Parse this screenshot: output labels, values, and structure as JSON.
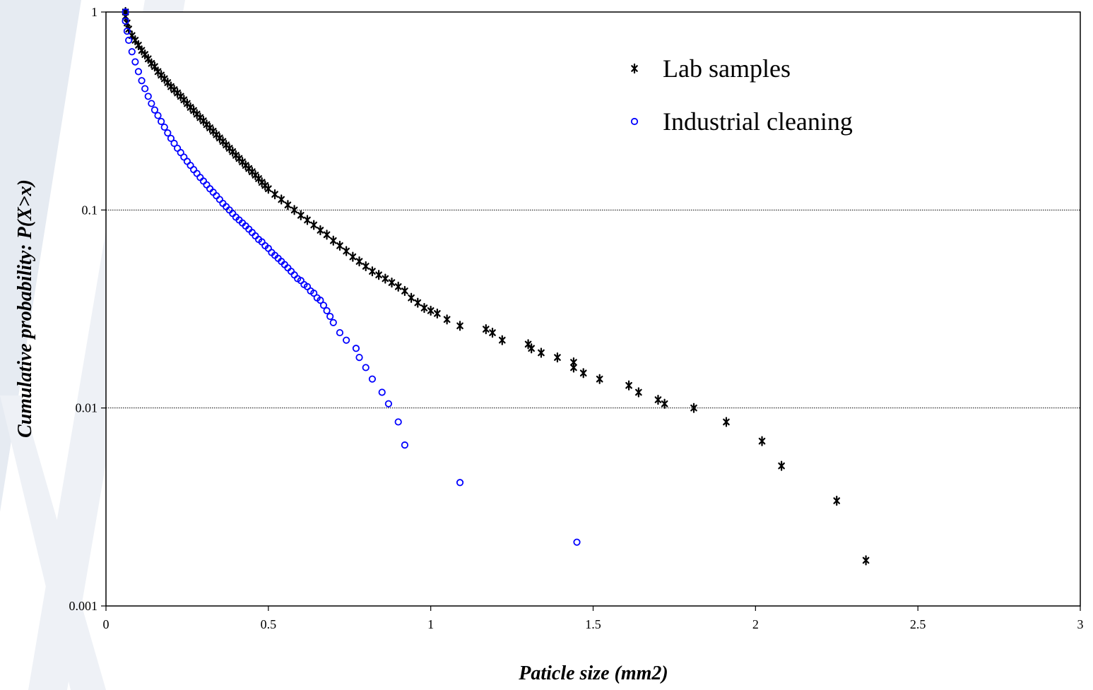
{
  "chart_data": {
    "type": "scatter",
    "title": "",
    "xlabel": "Paticle size (mm2)",
    "ylabel": "Cumulative probability: P(X>x)",
    "xlim": [
      0,
      3
    ],
    "ylim": [
      0.001,
      1
    ],
    "yscale": "log",
    "x_ticks": [
      "0",
      "0.5",
      "1",
      "1.5",
      "2",
      "2.5",
      "3"
    ],
    "y_ticks": [
      "0.001",
      "0.01",
      "0.1",
      "1"
    ],
    "grid": "horizontal major gridlines",
    "legend_position": "top-right",
    "series": [
      {
        "name": "Lab samples",
        "marker": "asterisk",
        "color": "#000000",
        "points": [
          [
            0.06,
            1.0
          ],
          [
            0.06,
            0.95
          ],
          [
            0.065,
            0.88
          ],
          [
            0.07,
            0.82
          ],
          [
            0.08,
            0.76
          ],
          [
            0.09,
            0.72
          ],
          [
            0.1,
            0.68
          ],
          [
            0.11,
            0.64
          ],
          [
            0.12,
            0.61
          ],
          [
            0.13,
            0.58
          ],
          [
            0.14,
            0.55
          ],
          [
            0.15,
            0.53
          ],
          [
            0.16,
            0.5
          ],
          [
            0.17,
            0.48
          ],
          [
            0.18,
            0.46
          ],
          [
            0.19,
            0.44
          ],
          [
            0.2,
            0.42
          ],
          [
            0.21,
            0.405
          ],
          [
            0.22,
            0.39
          ],
          [
            0.23,
            0.375
          ],
          [
            0.24,
            0.36
          ],
          [
            0.25,
            0.345
          ],
          [
            0.26,
            0.33
          ],
          [
            0.27,
            0.318
          ],
          [
            0.28,
            0.305
          ],
          [
            0.29,
            0.293
          ],
          [
            0.3,
            0.282
          ],
          [
            0.31,
            0.27
          ],
          [
            0.32,
            0.26
          ],
          [
            0.33,
            0.25
          ],
          [
            0.34,
            0.24
          ],
          [
            0.35,
            0.231
          ],
          [
            0.36,
            0.222
          ],
          [
            0.37,
            0.213
          ],
          [
            0.38,
            0.205
          ],
          [
            0.39,
            0.197
          ],
          [
            0.4,
            0.189
          ],
          [
            0.41,
            0.182
          ],
          [
            0.42,
            0.175
          ],
          [
            0.43,
            0.168
          ],
          [
            0.44,
            0.162
          ],
          [
            0.45,
            0.156
          ],
          [
            0.46,
            0.15
          ],
          [
            0.47,
            0.144
          ],
          [
            0.48,
            0.138
          ],
          [
            0.49,
            0.133
          ],
          [
            0.5,
            0.128
          ],
          [
            0.52,
            0.12
          ],
          [
            0.54,
            0.113
          ],
          [
            0.56,
            0.106
          ],
          [
            0.58,
            0.1
          ],
          [
            0.6,
            0.094
          ],
          [
            0.62,
            0.089
          ],
          [
            0.64,
            0.084
          ],
          [
            0.66,
            0.079
          ],
          [
            0.68,
            0.075
          ],
          [
            0.7,
            0.07
          ],
          [
            0.72,
            0.066
          ],
          [
            0.74,
            0.062
          ],
          [
            0.76,
            0.058
          ],
          [
            0.78,
            0.055
          ],
          [
            0.8,
            0.052
          ],
          [
            0.82,
            0.049
          ],
          [
            0.84,
            0.047
          ],
          [
            0.86,
            0.045
          ],
          [
            0.88,
            0.043
          ],
          [
            0.9,
            0.041
          ],
          [
            0.92,
            0.039
          ],
          [
            0.94,
            0.036
          ],
          [
            0.96,
            0.034
          ],
          [
            0.98,
            0.032
          ],
          [
            1.0,
            0.031
          ],
          [
            1.02,
            0.03
          ],
          [
            1.05,
            0.028
          ],
          [
            1.09,
            0.026
          ],
          [
            1.17,
            0.025
          ],
          [
            1.19,
            0.024
          ],
          [
            1.22,
            0.022
          ],
          [
            1.3,
            0.021
          ],
          [
            1.31,
            0.02
          ],
          [
            1.34,
            0.019
          ],
          [
            1.39,
            0.018
          ],
          [
            1.44,
            0.017
          ],
          [
            1.44,
            0.016
          ],
          [
            1.47,
            0.015
          ],
          [
            1.52,
            0.014
          ],
          [
            1.61,
            0.013
          ],
          [
            1.64,
            0.012
          ],
          [
            1.7,
            0.011
          ],
          [
            1.72,
            0.0105
          ],
          [
            1.81,
            0.01
          ],
          [
            1.91,
            0.0085
          ],
          [
            2.02,
            0.0068
          ],
          [
            2.08,
            0.0051
          ],
          [
            2.25,
            0.0034
          ],
          [
            2.34,
            0.0017
          ]
        ]
      },
      {
        "name": "Industrial cleaning",
        "marker": "circle",
        "color": "#0000ff",
        "points": [
          [
            0.06,
            1.0
          ],
          [
            0.06,
            0.9
          ],
          [
            0.065,
            0.8
          ],
          [
            0.07,
            0.72
          ],
          [
            0.08,
            0.63
          ],
          [
            0.09,
            0.56
          ],
          [
            0.1,
            0.5
          ],
          [
            0.11,
            0.45
          ],
          [
            0.12,
            0.41
          ],
          [
            0.13,
            0.375
          ],
          [
            0.14,
            0.345
          ],
          [
            0.15,
            0.32
          ],
          [
            0.16,
            0.3
          ],
          [
            0.17,
            0.28
          ],
          [
            0.18,
            0.262
          ],
          [
            0.19,
            0.245
          ],
          [
            0.2,
            0.23
          ],
          [
            0.21,
            0.217
          ],
          [
            0.22,
            0.205
          ],
          [
            0.23,
            0.195
          ],
          [
            0.24,
            0.185
          ],
          [
            0.25,
            0.176
          ],
          [
            0.26,
            0.168
          ],
          [
            0.27,
            0.16
          ],
          [
            0.28,
            0.153
          ],
          [
            0.29,
            0.146
          ],
          [
            0.3,
            0.14
          ],
          [
            0.31,
            0.134
          ],
          [
            0.32,
            0.128
          ],
          [
            0.33,
            0.123
          ],
          [
            0.34,
            0.118
          ],
          [
            0.35,
            0.113
          ],
          [
            0.36,
            0.108
          ],
          [
            0.37,
            0.104
          ],
          [
            0.38,
            0.1
          ],
          [
            0.39,
            0.096
          ],
          [
            0.4,
            0.092
          ],
          [
            0.41,
            0.089
          ],
          [
            0.42,
            0.086
          ],
          [
            0.43,
            0.083
          ],
          [
            0.44,
            0.08
          ],
          [
            0.45,
            0.077
          ],
          [
            0.46,
            0.074
          ],
          [
            0.47,
            0.071
          ],
          [
            0.48,
            0.069
          ],
          [
            0.49,
            0.066
          ],
          [
            0.5,
            0.064
          ],
          [
            0.51,
            0.061
          ],
          [
            0.52,
            0.059
          ],
          [
            0.53,
            0.057
          ],
          [
            0.54,
            0.055
          ],
          [
            0.55,
            0.053
          ],
          [
            0.56,
            0.051
          ],
          [
            0.57,
            0.049
          ],
          [
            0.58,
            0.047
          ],
          [
            0.59,
            0.045
          ],
          [
            0.6,
            0.044
          ],
          [
            0.61,
            0.042
          ],
          [
            0.62,
            0.041
          ],
          [
            0.63,
            0.039
          ],
          [
            0.64,
            0.038
          ],
          [
            0.65,
            0.036
          ],
          [
            0.66,
            0.035
          ],
          [
            0.67,
            0.033
          ],
          [
            0.68,
            0.031
          ],
          [
            0.69,
            0.029
          ],
          [
            0.7,
            0.027
          ],
          [
            0.72,
            0.024
          ],
          [
            0.74,
            0.022
          ],
          [
            0.77,
            0.02
          ],
          [
            0.78,
            0.018
          ],
          [
            0.8,
            0.016
          ],
          [
            0.82,
            0.014
          ],
          [
            0.85,
            0.012
          ],
          [
            0.87,
            0.0105
          ],
          [
            0.9,
            0.0085
          ],
          [
            0.92,
            0.0065
          ],
          [
            1.09,
            0.0042
          ],
          [
            1.45,
            0.0021
          ]
        ]
      }
    ]
  }
}
